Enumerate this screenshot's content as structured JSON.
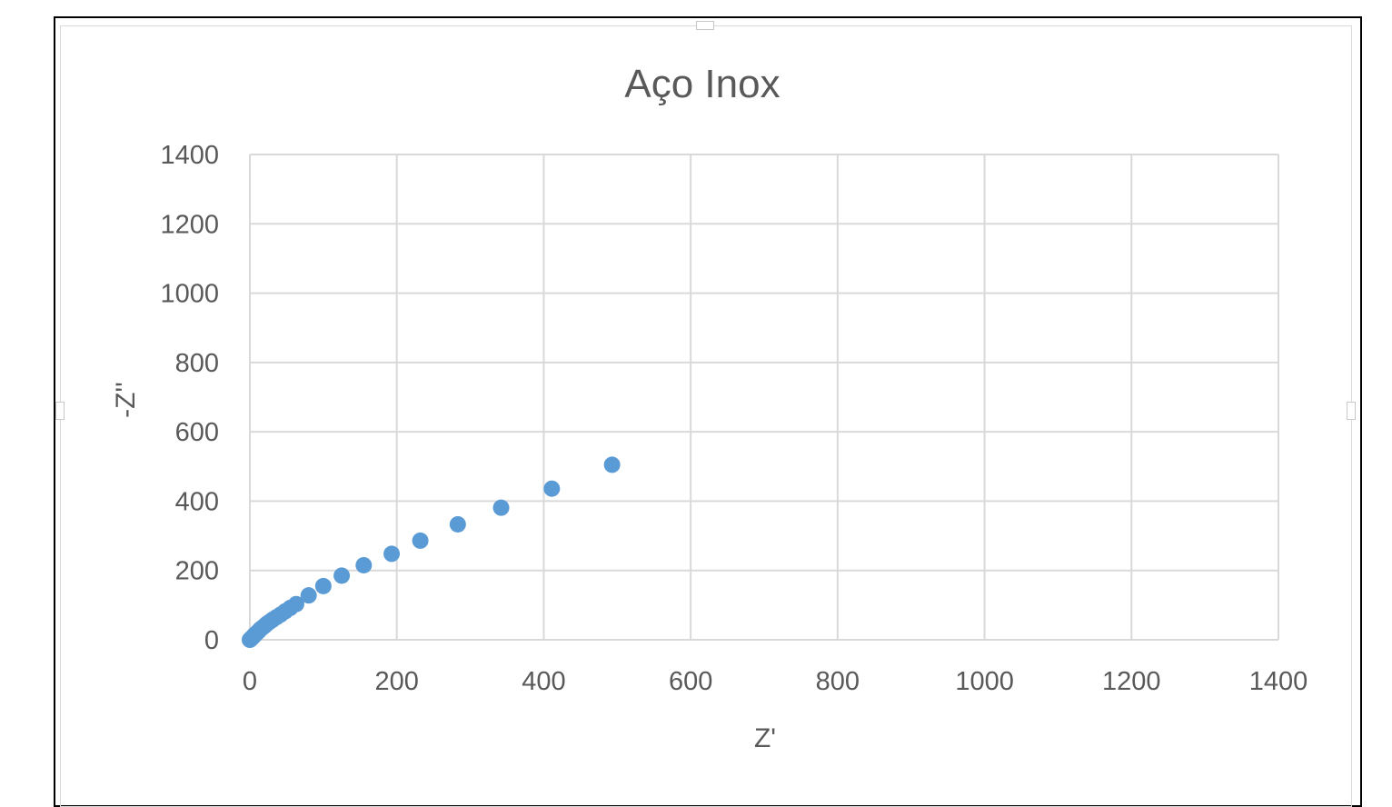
{
  "chart_data": {
    "type": "scatter",
    "title": "Aço Inox",
    "xlabel": "Z'",
    "ylabel": "-Z''",
    "xlim": [
      0,
      1400
    ],
    "ylim": [
      0,
      1400
    ],
    "xticks": [
      0,
      200,
      400,
      600,
      800,
      1000,
      1200,
      1400
    ],
    "yticks": [
      0,
      200,
      400,
      600,
      800,
      1000,
      1200,
      1400
    ],
    "grid": true,
    "legend": "none",
    "series": [
      {
        "color": "#5b9bd5",
        "points": [
          [
            0,
            0
          ],
          [
            1,
            2
          ],
          [
            2,
            4
          ],
          [
            3,
            6
          ],
          [
            4,
            8
          ],
          [
            5,
            10
          ],
          [
            6,
            13
          ],
          [
            8,
            17
          ],
          [
            10,
            21
          ],
          [
            12,
            25
          ],
          [
            14,
            30
          ],
          [
            17,
            35
          ],
          [
            20,
            40
          ],
          [
            23,
            46
          ],
          [
            27,
            52
          ],
          [
            31,
            58
          ],
          [
            36,
            65
          ],
          [
            42,
            73
          ],
          [
            48,
            82
          ],
          [
            55,
            92
          ],
          [
            63,
            103
          ],
          [
            80,
            128
          ],
          [
            100,
            155
          ],
          [
            125,
            185
          ],
          [
            155,
            215
          ],
          [
            193,
            248
          ],
          [
            232,
            286
          ],
          [
            283,
            333
          ],
          [
            342,
            381
          ],
          [
            411,
            436
          ],
          [
            493,
            505
          ]
        ]
      }
    ]
  }
}
